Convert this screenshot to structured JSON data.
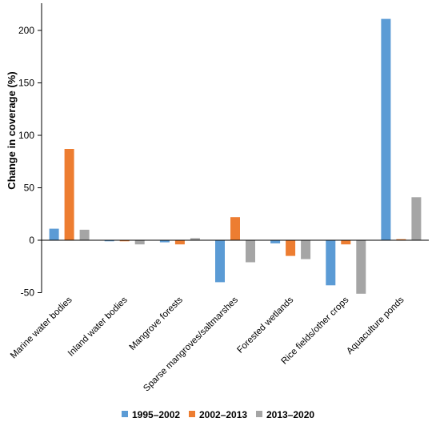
{
  "chart_data": {
    "type": "bar",
    "title": "",
    "xlabel": "",
    "ylabel": "Change in coverage (%)",
    "ylim": [
      -50,
      225
    ],
    "yticks": [
      -50,
      0,
      50,
      100,
      150,
      200
    ],
    "grid": false,
    "legend_position": "bottom",
    "categories": [
      "Marine water bodies",
      "Inland water bodies",
      "Mangrove forests",
      "Sparse mangroves/saltmarshes",
      "Forested wetlands",
      "Rice fields/other crops",
      "Aquaculture ponds"
    ],
    "series": [
      {
        "name": "1995–2002",
        "color": "#5b9bd5",
        "values": [
          11,
          -1,
          -2,
          -40,
          -3,
          -43,
          211
        ]
      },
      {
        "name": "2002–2013",
        "color": "#ed7d31",
        "values": [
          87,
          -1,
          -4,
          22,
          -15,
          -4,
          1
        ]
      },
      {
        "name": "2013–2020",
        "color": "#a5a5a5",
        "values": [
          10,
          -4,
          2,
          -21,
          -18,
          -51,
          41
        ]
      }
    ]
  }
}
